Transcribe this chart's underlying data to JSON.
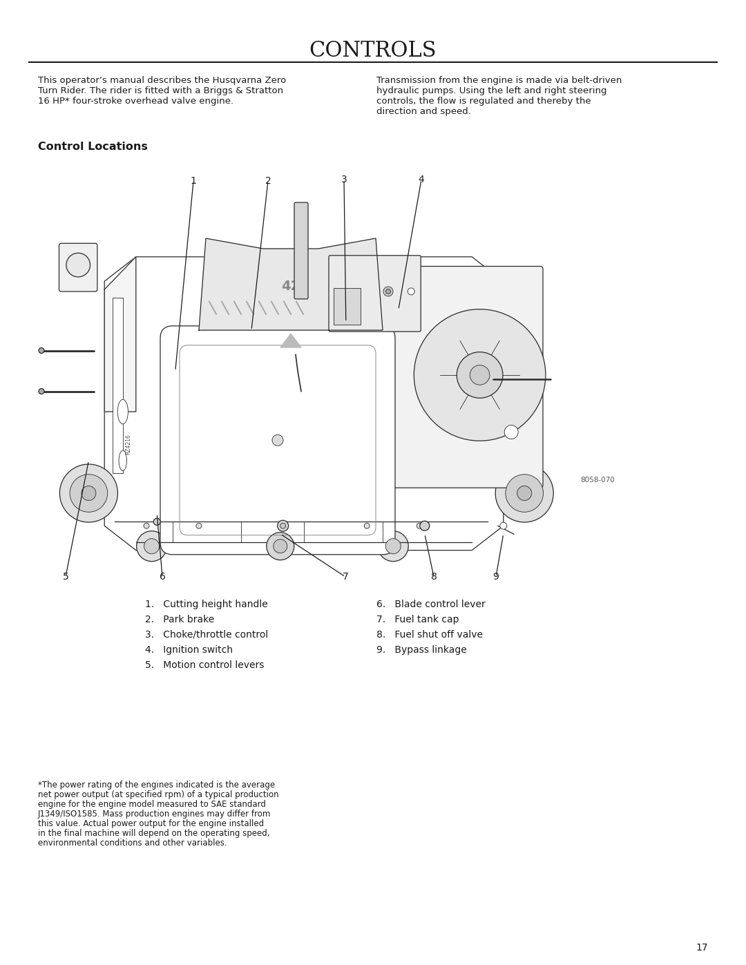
{
  "title": "CONTROLS",
  "bg_color": "#ffffff",
  "title_fontsize": 20,
  "left_para_line1": "This operator’s manual describes the Husqvarna Zero",
  "left_para_line2": "Turn Rider. The rider is fitted with a Briggs & Stratton",
  "left_para_line3": "16 HP* four-stroke overhead valve engine.",
  "right_para_line1": "Transmission from the engine is made via belt-driven",
  "right_para_line2": "hydraulic pumps. Using the left and right steering",
  "right_para_line3": "controls, the flow is regulated and thereby the",
  "right_para_line4": "direction and speed.",
  "control_locations_title": "Control Locations",
  "items_left": [
    "1.   Cutting height handle",
    "2.   Park brake",
    "3.   Choke/throttle control",
    "4.   Ignition switch",
    "5.   Motion control levers"
  ],
  "items_right": [
    "6.   Blade control lever",
    "7.   Fuel tank cap",
    "8.   Fuel shut off valve",
    "9.   Bypass linkage"
  ],
  "footnote_lines": [
    "*The power rating of the engines indicated is the average",
    "net power output (at specified rpm) of a typical production",
    "engine for the engine model measured to SAE standard",
    "J1349/ISO1585. Mass production engines may differ from",
    "this value. Actual power output for the engine installed",
    "in the final machine will depend on the operating speed,",
    "environmental conditions and other variables."
  ],
  "image_ref": "8058-070",
  "page_number": "17"
}
